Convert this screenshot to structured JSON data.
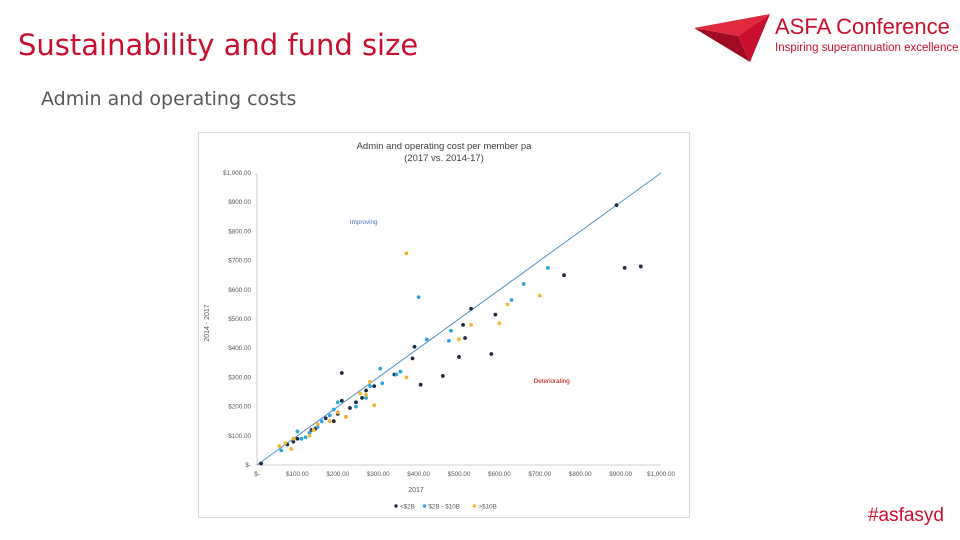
{
  "slide": {
    "title": "Sustainability and fund size",
    "subtitle": "Admin and operating costs",
    "hashtag": "#asfasyd"
  },
  "logo": {
    "name": "ASFA Conference",
    "tagline": "Inspiring superannuation excellence"
  },
  "colors": {
    "accent": "#c8102e",
    "series_small": "#1f2a44",
    "series_mid": "#2aa7df",
    "series_large": "#f5b32e",
    "trend": "#4f8fce",
    "annotation_improving": "#4472c4",
    "annotation_deteriorating": "#c00000"
  },
  "chart_data": {
    "type": "scatter",
    "title": "Admin and operating cost per member pa",
    "subtitle": "(2017 vs. 2014-17)",
    "xlabel": "2017",
    "ylabel": "2014 - 2017",
    "xlim": [
      0,
      1000
    ],
    "ylim": [
      0,
      1000
    ],
    "x_ticks": [
      0,
      100,
      200,
      300,
      400,
      500,
      600,
      700,
      800,
      900,
      1000
    ],
    "y_ticks": [
      0,
      100,
      200,
      300,
      400,
      500,
      600,
      700,
      800,
      900,
      1000
    ],
    "x_tick_labels": [
      "$-",
      "$100.00",
      "$200.00",
      "$300.00",
      "$400.00",
      "$500.00",
      "$600.00",
      "$700.00",
      "$800.00",
      "$900.00",
      "$1,000.00"
    ],
    "y_tick_labels": [
      "$-",
      "$100.00",
      "$200.00",
      "$300.00",
      "$400.00",
      "$500.00",
      "$600.00",
      "$700.00",
      "$800.00",
      "$900.00",
      "$1,000.00"
    ],
    "grid": false,
    "legend_position": "bottom",
    "reference_line": {
      "x": [
        0,
        1000
      ],
      "y": [
        0,
        1000
      ]
    },
    "annotations": [
      {
        "text": "Improving",
        "x": 230,
        "y": 825,
        "color_key": "annotation_improving"
      },
      {
        "text": "Deteriorating",
        "x": 685,
        "y": 280,
        "color_key": "annotation_deteriorating"
      }
    ],
    "series": [
      {
        "name": "<$2B",
        "color_key": "series_small",
        "points": [
          [
            890,
            890
          ],
          [
            910,
            675
          ],
          [
            950,
            680
          ],
          [
            760,
            650
          ],
          [
            530,
            535
          ],
          [
            510,
            480
          ],
          [
            590,
            515
          ],
          [
            580,
            380
          ],
          [
            500,
            370
          ],
          [
            515,
            435
          ],
          [
            460,
            305
          ],
          [
            390,
            405
          ],
          [
            385,
            365
          ],
          [
            405,
            275
          ],
          [
            340,
            310
          ],
          [
            290,
            270
          ],
          [
            270,
            255
          ],
          [
            260,
            230
          ],
          [
            245,
            215
          ],
          [
            210,
            315
          ],
          [
            210,
            220
          ],
          [
            200,
            175
          ],
          [
            190,
            150
          ],
          [
            170,
            160
          ],
          [
            145,
            125
          ],
          [
            135,
            120
          ],
          [
            100,
            90
          ],
          [
            90,
            80
          ],
          [
            75,
            70
          ],
          [
            10,
            5
          ],
          [
            230,
            195
          ]
        ]
      },
      {
        "name": "$2B - $10B",
        "color_key": "series_mid",
        "points": [
          [
            720,
            675
          ],
          [
            660,
            620
          ],
          [
            630,
            565
          ],
          [
            400,
            575
          ],
          [
            480,
            460
          ],
          [
            475,
            425
          ],
          [
            420,
            430
          ],
          [
            355,
            320
          ],
          [
            345,
            310
          ],
          [
            310,
            280
          ],
          [
            305,
            330
          ],
          [
            280,
            270
          ],
          [
            270,
            230
          ],
          [
            245,
            200
          ],
          [
            200,
            215
          ],
          [
            190,
            190
          ],
          [
            180,
            170
          ],
          [
            160,
            150
          ],
          [
            150,
            130
          ],
          [
            130,
            110
          ],
          [
            120,
            95
          ],
          [
            110,
            90
          ],
          [
            100,
            115
          ],
          [
            60,
            50
          ]
        ]
      },
      {
        "name": ">$10B",
        "color_key": "series_large",
        "points": [
          [
            370,
            725
          ],
          [
            700,
            580
          ],
          [
            620,
            550
          ],
          [
            600,
            485
          ],
          [
            530,
            480
          ],
          [
            500,
            430
          ],
          [
            370,
            300
          ],
          [
            290,
            205
          ],
          [
            280,
            285
          ],
          [
            270,
            240
          ],
          [
            255,
            245
          ],
          [
            220,
            165
          ],
          [
            200,
            180
          ],
          [
            180,
            150
          ],
          [
            150,
            140
          ],
          [
            140,
            120
          ],
          [
            130,
            100
          ],
          [
            90,
            90
          ],
          [
            85,
            55
          ],
          [
            70,
            75
          ],
          [
            55,
            65
          ]
        ]
      }
    ]
  }
}
